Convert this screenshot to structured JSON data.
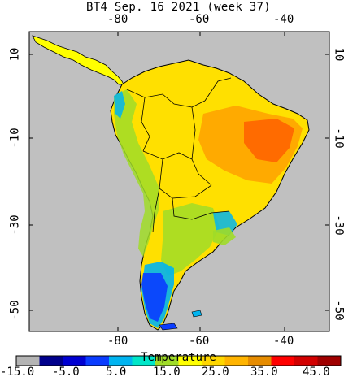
{
  "title": "BT4 Sep. 16 2021 (week 37)",
  "longitude_ticks": [
    "-80",
    "-60",
    "-40"
  ],
  "latitude_ticks": [
    "10",
    "-10",
    "-30",
    "-50"
  ],
  "colorbar": {
    "label": "Temperature",
    "ticks": [
      "-15.0",
      "-5.0",
      "5.0",
      "15.0",
      "25.0",
      "35.0",
      "45.0"
    ],
    "colors": [
      "#b4b4b4",
      "#00008c",
      "#0000d2",
      "#0a3cff",
      "#00b4f0",
      "#00e6c8",
      "#a0dc28",
      "#ffff00",
      "#ffd700",
      "#ffb400",
      "#e68c00",
      "#ff0000",
      "#d20000",
      "#a00000"
    ]
  },
  "palette": {
    "ocean": "#c0c0c0",
    "land_warm": "#ffff00",
    "land_hot": "#ff7800",
    "land_cool": "#a0dc28",
    "land_cold": "#0000d2",
    "coast": "#000000"
  }
}
